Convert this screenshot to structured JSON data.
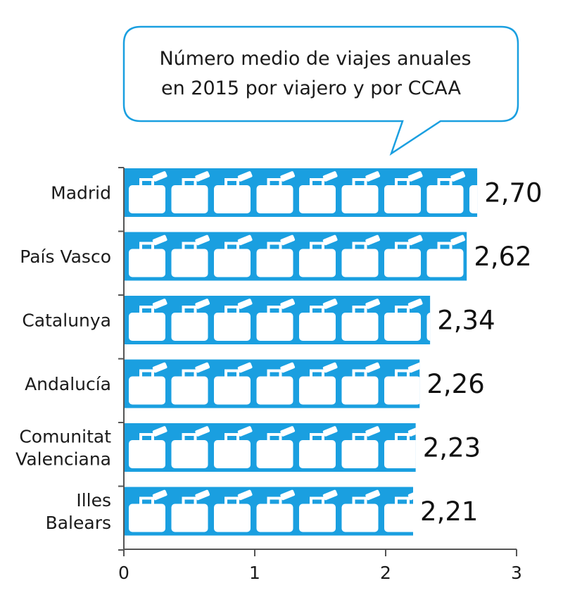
{
  "chart_data": {
    "type": "bar",
    "orientation": "horizontal",
    "title_lines": [
      "Número medio de viajes anuales",
      "en 2015 por viajero y por CCAA"
    ],
    "categories": [
      [
        "Madrid"
      ],
      [
        "País Vasco"
      ],
      [
        "Catalunya"
      ],
      [
        "Andalucía"
      ],
      [
        "Comunitat",
        "Valenciana"
      ],
      [
        "Illes",
        "Balears"
      ]
    ],
    "values": [
      2.7,
      2.62,
      2.34,
      2.26,
      2.23,
      2.21
    ],
    "value_labels": [
      "2,70",
      "2,62",
      "2,34",
      "2,26",
      "2,23",
      "2,21"
    ],
    "xlim": [
      0,
      3
    ],
    "xticks": [
      0,
      1,
      2,
      3
    ],
    "xtick_labels": [
      "0",
      "1",
      "2",
      "3"
    ],
    "bar_color": "#1a9fe0",
    "icon_color": "#ffffff",
    "bar_icon": "briefcase-icon",
    "callout_border_color": "#1a9fe0",
    "callout_fill_color": "#ffffff",
    "axis_color": "#555555"
  }
}
